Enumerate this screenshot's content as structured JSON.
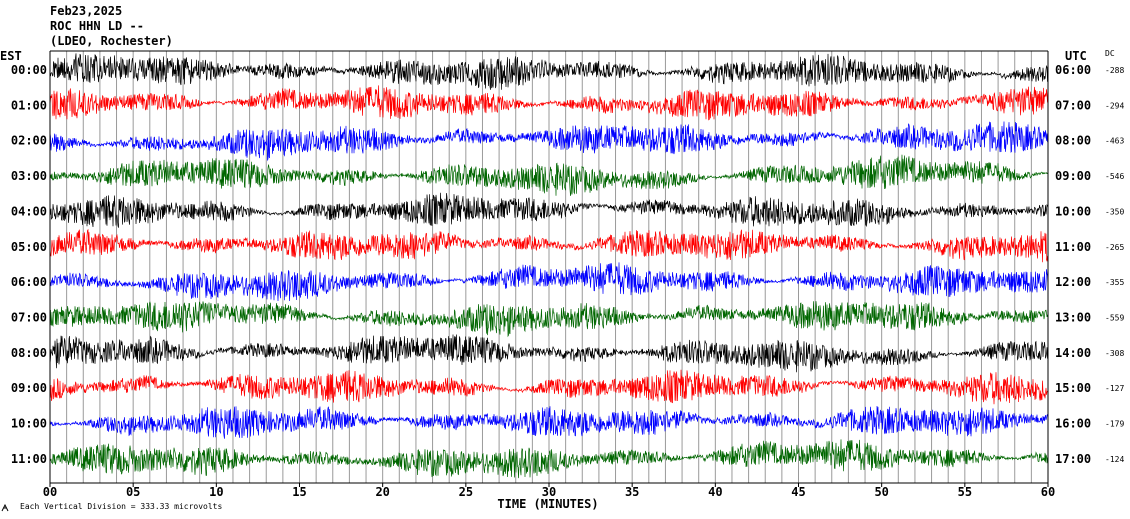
{
  "header": {
    "date": "Feb23,2025",
    "station": "ROC HHN LD --",
    "network": "(LDEO, Rochester)"
  },
  "axes": {
    "left_label": "EST",
    "right_label": "UTC",
    "dc_label": "DC",
    "xlabel": "TIME (MINUTES)"
  },
  "footer": {
    "scale_note": "Each Vertical Division =  333.33 microvolts"
  },
  "colors": {
    "trace_cycle": [
      "#000000",
      "#ff0000",
      "#0000ff",
      "#006600"
    ],
    "gridline": "#9a9a9a",
    "frame": "#000000"
  },
  "chart_data": {
    "type": "line",
    "title": "Feb23,2025",
    "subtitle": "ROC HHN LD -- (LDEO, Rochester)",
    "xlabel": "TIME (MINUTES)",
    "x_ticks": [
      "00",
      "05",
      "10",
      "15",
      "20",
      "25",
      "30",
      "35",
      "40",
      "45",
      "50",
      "55",
      "60"
    ],
    "xlim": [
      0,
      60
    ],
    "rows": [
      {
        "est": "00:00",
        "utc": "06:00",
        "dc": "-288",
        "color": "#000000"
      },
      {
        "est": "01:00",
        "utc": "07:00",
        "dc": "-294",
        "color": "#ff0000"
      },
      {
        "est": "02:00",
        "utc": "08:00",
        "dc": "-463",
        "color": "#0000ff"
      },
      {
        "est": "03:00",
        "utc": "09:00",
        "dc": "-546",
        "color": "#006600"
      },
      {
        "est": "04:00",
        "utc": "10:00",
        "dc": "-350",
        "color": "#000000"
      },
      {
        "est": "05:00",
        "utc": "11:00",
        "dc": "-265",
        "color": "#ff0000"
      },
      {
        "est": "06:00",
        "utc": "12:00",
        "dc": "-355",
        "color": "#0000ff"
      },
      {
        "est": "07:00",
        "utc": "13:00",
        "dc": "-559",
        "color": "#006600"
      },
      {
        "est": "08:00",
        "utc": "14:00",
        "dc": "-308",
        "color": "#000000"
      },
      {
        "est": "09:00",
        "utc": "15:00",
        "dc": "-127",
        "color": "#ff0000"
      },
      {
        "est": "10:00",
        "utc": "16:00",
        "dc": "-179",
        "color": "#0000ff"
      },
      {
        "est": "11:00",
        "utc": "17:00",
        "dc": "-124",
        "color": "#006600"
      }
    ],
    "grid": true
  }
}
